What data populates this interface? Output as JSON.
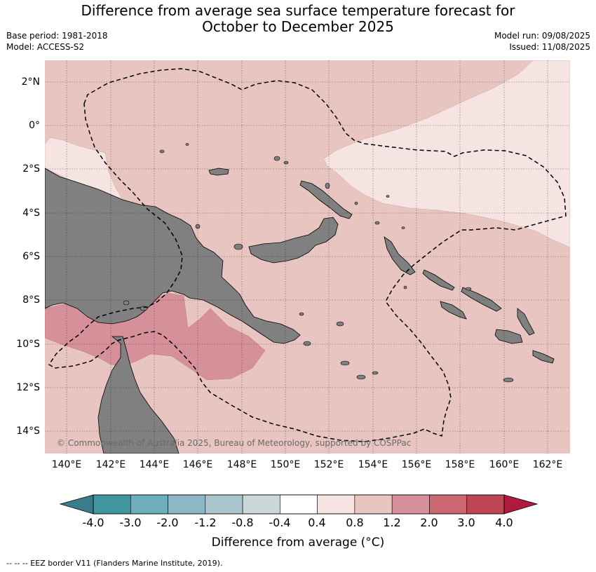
{
  "title_line1": "Difference from average sea surface temperature forecast for",
  "title_line2": "October to December 2025",
  "base_period": "Base period: 1981-2018",
  "model": "Model: ACCESS-S2",
  "model_run": "Model run: 09/08/2025",
  "issued": "Issued: 11/08/2025",
  "copyright": "© Commonwealth of Australia 2025, Bureau of Meteorology, supported by COSPPac",
  "lat_labels": [
    "2°N",
    "0°",
    "2°S",
    "4°S",
    "6°S",
    "8°S",
    "10°S",
    "12°S",
    "14°S"
  ],
  "lon_labels": [
    "140°E",
    "142°E",
    "144°E",
    "146°E",
    "148°E",
    "150°E",
    "152°E",
    "154°E",
    "156°E",
    "158°E",
    "160°E",
    "162°E"
  ],
  "colorbar": {
    "ticks": [
      "-4.0",
      "-3.0",
      "-2.0",
      "-1.2",
      "-0.8",
      "-0.4",
      "0.4",
      "0.8",
      "1.2",
      "2.0",
      "3.0",
      "4.0"
    ],
    "colors": [
      "#40969f",
      "#6eaebc",
      "#8cb7c4",
      "#a8c6cb",
      "#cad8da",
      "#ffffff",
      "#f5e4e2",
      "#e8c5c1",
      "#d6909a",
      "#cb6873",
      "#bf4555"
    ],
    "under_color": "#3a7d8a",
    "over_color": "#b01a3c",
    "label": "Difference from average ($^\\circ$C)"
  },
  "colors": {
    "land": "#808080",
    "anom_0_8_1_2": "#e8c5c1",
    "anom_0_4_0_8": "#f5e4e2",
    "anom_1_2_2_0": "#d6909a"
  },
  "footnote": "--  --  -- EEZ border V11 (Flanders Marine Institute, 2019)."
}
